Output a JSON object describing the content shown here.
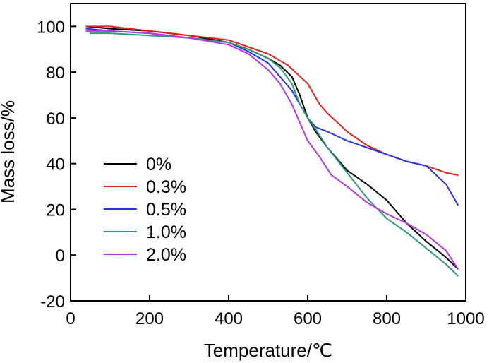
{
  "chart_data": {
    "type": "line",
    "title": "",
    "xlabel": "Temperature/℃",
    "ylabel": "Mass loss/%",
    "xlim": [
      0,
      1000
    ],
    "ylim": [
      -20,
      110
    ],
    "x_ticks": [
      {
        "value": 0,
        "label": "0"
      },
      {
        "value": 200,
        "label": "200"
      },
      {
        "value": 400,
        "label": "400"
      },
      {
        "value": 600,
        "label": "600"
      },
      {
        "value": 800,
        "label": "800"
      },
      {
        "value": 1000,
        "label": "1000"
      }
    ],
    "y_ticks": [
      {
        "value": -20,
        "label": "-20"
      },
      {
        "value": 0,
        "label": "0"
      },
      {
        "value": 20,
        "label": "20"
      },
      {
        "value": 40,
        "label": "40"
      },
      {
        "value": 60,
        "label": "60"
      },
      {
        "value": 80,
        "label": "80"
      },
      {
        "value": 100,
        "label": "100"
      }
    ],
    "grid": false,
    "legend_position": "left-center",
    "series": [
      {
        "name": "0%",
        "color": "#000000",
        "x": [
          40,
          100,
          200,
          300,
          400,
          450,
          500,
          530,
          560,
          580,
          600,
          620,
          650,
          700,
          750,
          800,
          850,
          900,
          950,
          980
        ],
        "y": [
          100,
          99,
          98,
          96,
          93,
          90,
          86,
          83,
          78,
          70,
          60,
          54,
          47,
          37,
          31,
          24,
          14,
          6,
          -1,
          -6
        ]
      },
      {
        "name": "0.3%",
        "color": "#e8201a",
        "x": [
          40,
          100,
          200,
          300,
          400,
          450,
          500,
          550,
          600,
          630,
          650,
          700,
          750,
          800,
          850,
          900,
          950,
          980
        ],
        "y": [
          100,
          100,
          98,
          96,
          94,
          91,
          88,
          83,
          75,
          66,
          62,
          54,
          48,
          44,
          41,
          39,
          36,
          35
        ]
      },
      {
        "name": "0.5%",
        "color": "#2336e0",
        "x": [
          40,
          100,
          200,
          300,
          400,
          450,
          500,
          530,
          560,
          580,
          600,
          620,
          650,
          700,
          750,
          800,
          850,
          900,
          950,
          980
        ],
        "y": [
          99,
          98,
          97,
          95,
          93,
          89,
          84,
          78,
          72,
          66,
          60,
          56,
          54,
          50,
          47,
          44,
          41,
          39,
          31,
          22
        ]
      },
      {
        "name": "1.0%",
        "color": "#2a9a78",
        "x": [
          50,
          100,
          200,
          300,
          400,
          450,
          500,
          530,
          560,
          580,
          600,
          620,
          650,
          700,
          750,
          800,
          850,
          900,
          950,
          980
        ],
        "y": [
          97,
          97,
          96,
          95,
          93,
          90,
          86,
          82,
          75,
          66,
          60,
          55,
          47,
          36,
          25,
          16,
          10,
          3,
          -4,
          -9
        ]
      },
      {
        "name": "2.0%",
        "color": "#b535e8",
        "x": [
          40,
          100,
          200,
          300,
          400,
          450,
          500,
          530,
          560,
          580,
          600,
          630,
          660,
          700,
          750,
          800,
          850,
          900,
          950,
          980
        ],
        "y": [
          98,
          98,
          97,
          95,
          92,
          88,
          81,
          75,
          66,
          58,
          50,
          43,
          35,
          30,
          23,
          18,
          14,
          9,
          2,
          -6
        ]
      }
    ]
  }
}
